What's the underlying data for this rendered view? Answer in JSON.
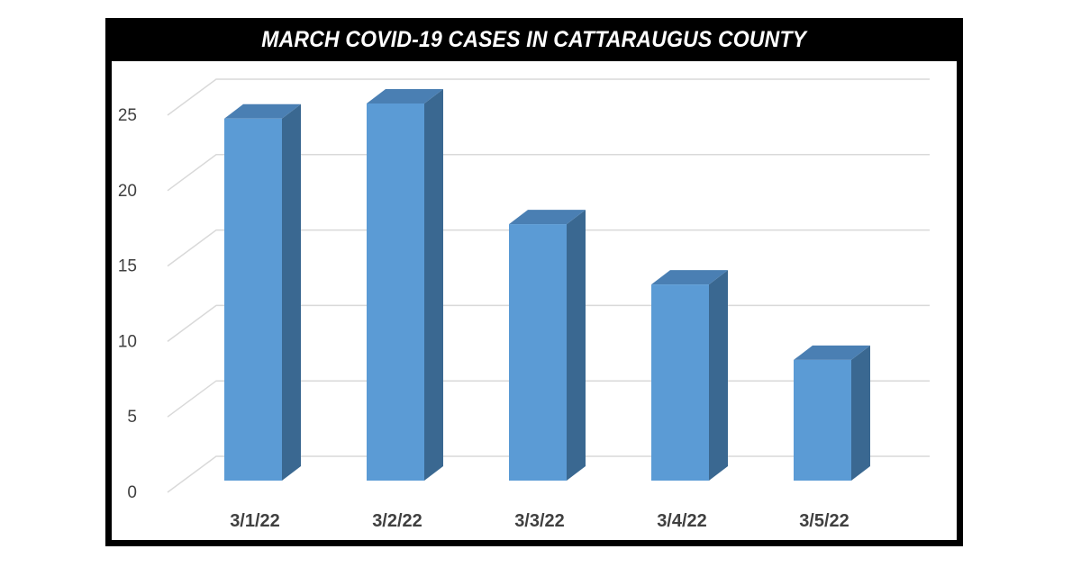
{
  "header": {
    "title": "MARCH COVID-19 CASES IN CATTARAUGUS COUNTY"
  },
  "colors": {
    "bar_front": "#5B9BD5",
    "bar_side": "#3A6891",
    "bar_top": "#4A7FB3",
    "gridline": "#D9D9D9",
    "label_text": "#404040",
    "header_bg": "#000000",
    "header_text": "#FFFFFF"
  },
  "chart_data": {
    "type": "bar",
    "style": "3d-column",
    "title": "MARCH COVID-19 CASES IN CATTARAUGUS COUNTY",
    "xlabel": "",
    "ylabel": "",
    "categories": [
      "3/1/22",
      "3/2/22",
      "3/3/22",
      "3/4/22",
      "3/5/22"
    ],
    "values": [
      24,
      25,
      17,
      13,
      8
    ],
    "yticks": [
      0,
      5,
      10,
      15,
      20,
      25
    ],
    "ylim": [
      0,
      25
    ],
    "grid": true,
    "legend": false
  }
}
